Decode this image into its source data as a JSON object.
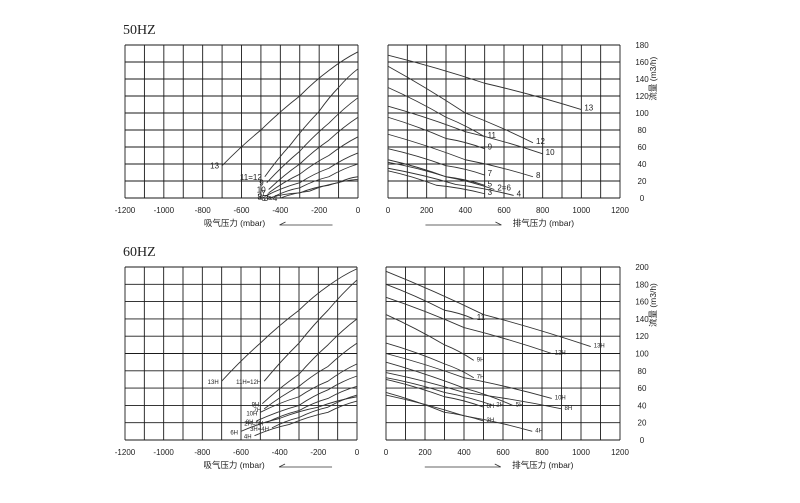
{
  "chart_data": [
    {
      "id": "suction-50",
      "frequency_label": "50HZ",
      "type": "line",
      "xlabel": "吸气压力 (mbar)",
      "ylabel": "",
      "xlim": [
        -1200,
        0
      ],
      "ylim": [
        0,
        180
      ],
      "xticks": [
        -1200,
        -1000,
        -800,
        -600,
        -400,
        -200,
        0
      ],
      "show_ytick_labels": false,
      "grid": true,
      "series": [
        {
          "name": "13",
          "x": [
            -700,
            -500,
            -300,
            -150,
            0
          ],
          "y": [
            38,
            80,
            120,
            150,
            172
          ]
        },
        {
          "name": "11=12",
          "x": [
            -480,
            -350,
            -200,
            -100,
            0
          ],
          "y": [
            25,
            62,
            102,
            130,
            152
          ]
        },
        {
          "name": "9",
          "x": [
            -470,
            -300,
            -150,
            0
          ],
          "y": [
            18,
            55,
            88,
            118
          ]
        },
        {
          "name": "10",
          "x": [
            -460,
            -300,
            -150,
            0
          ],
          "y": [
            10,
            40,
            68,
            95
          ]
        },
        {
          "name": "7",
          "x": [
            -460,
            -300,
            -150,
            0
          ],
          "y": [
            6,
            28,
            50,
            72
          ]
        },
        {
          "name": "8",
          "x": [
            -480,
            -300,
            -150,
            0
          ],
          "y": [
            2,
            18,
            35,
            53
          ]
        },
        {
          "name": "2=5",
          "x": [
            -430,
            -300,
            -150,
            0
          ],
          "y": [
            2,
            12,
            25,
            40
          ]
        },
        {
          "name": "3=4",
          "x": [
            -400,
            -250,
            -100,
            0
          ],
          "y": [
            0,
            8,
            18,
            25
          ]
        },
        {
          "name": "6",
          "x": [
            -460,
            -300,
            -150,
            0
          ],
          "y": [
            0,
            6,
            15,
            22
          ]
        }
      ]
    },
    {
      "id": "discharge-50",
      "type": "line",
      "xlabel": "排气压力 (mbar)",
      "ylabel": "流量 (m3/h)",
      "xlim": [
        0,
        1200
      ],
      "ylim": [
        0,
        180
      ],
      "xticks": [
        0,
        200,
        400,
        600,
        800,
        1000,
        1200
      ],
      "yticks": [
        0,
        20,
        40,
        60,
        80,
        100,
        120,
        140,
        160,
        180
      ],
      "grid": true,
      "series": [
        {
          "name": "13",
          "x": [
            0,
            500,
            1000
          ],
          "y": [
            168,
            135,
            104
          ]
        },
        {
          "name": "12",
          "x": [
            0,
            400,
            750
          ],
          "y": [
            155,
            100,
            65
          ]
        },
        {
          "name": "11",
          "x": [
            0,
            300,
            500
          ],
          "y": [
            130,
            95,
            72
          ]
        },
        {
          "name": "10",
          "x": [
            0,
            400,
            800
          ],
          "y": [
            108,
            78,
            52
          ]
        },
        {
          "name": "9",
          "x": [
            0,
            300,
            500
          ],
          "y": [
            95,
            70,
            58
          ]
        },
        {
          "name": "8",
          "x": [
            0,
            400,
            750
          ],
          "y": [
            75,
            45,
            25
          ]
        },
        {
          "name": "7",
          "x": [
            0,
            300,
            500
          ],
          "y": [
            58,
            38,
            27
          ]
        },
        {
          "name": "5",
          "x": [
            0,
            300,
            500
          ],
          "y": [
            42,
            25,
            15
          ]
        },
        {
          "name": "2=6",
          "x": [
            0,
            300,
            550
          ],
          "y": [
            45,
            25,
            10
          ]
        },
        {
          "name": "3",
          "x": [
            0,
            250,
            500
          ],
          "y": [
            32,
            15,
            5
          ]
        },
        {
          "name": "4",
          "x": [
            0,
            350,
            650
          ],
          "y": [
            35,
            16,
            3
          ]
        }
      ]
    },
    {
      "id": "suction-60",
      "frequency_label": "60HZ",
      "type": "line",
      "xlabel": "吸气压力 (mbar)",
      "ylabel": "",
      "xlim": [
        -1200,
        0
      ],
      "ylim": [
        0,
        200
      ],
      "xticks": [
        -1200,
        -1000,
        -800,
        -600,
        -400,
        -200,
        0
      ],
      "show_ytick_labels": false,
      "grid": true,
      "series": [
        {
          "name": "13H",
          "x": [
            -700,
            -500,
            -300,
            -150,
            0
          ],
          "y": [
            68,
            112,
            150,
            178,
            198
          ]
        },
        {
          "name": "11H=12H",
          "x": [
            -480,
            -300,
            -150,
            0
          ],
          "y": [
            68,
            112,
            150,
            185
          ]
        },
        {
          "name": "9H",
          "x": [
            -490,
            -300,
            -150,
            0
          ],
          "y": [
            42,
            76,
            110,
            140
          ]
        },
        {
          "name": "7H",
          "x": [
            -480,
            -300,
            -150,
            0
          ],
          "y": [
            36,
            62,
            85,
            112
          ]
        },
        {
          "name": "10H",
          "x": [
            -500,
            -300,
            -150,
            0
          ],
          "y": [
            32,
            50,
            68,
            88
          ]
        },
        {
          "name": "8H",
          "x": [
            -520,
            -300,
            -150,
            0
          ],
          "y": [
            22,
            40,
            58,
            74
          ]
        },
        {
          "name": "2H=5H",
          "x": [
            -470,
            -300,
            -150,
            0
          ],
          "y": [
            20,
            34,
            48,
            62
          ]
        },
        {
          "name": "6H",
          "x": [
            -600,
            -400,
            -200,
            0
          ],
          "y": [
            10,
            25,
            38,
            50
          ]
        },
        {
          "name": "3H=4H",
          "x": [
            -440,
            -300,
            -150,
            0
          ],
          "y": [
            14,
            26,
            38,
            52
          ]
        },
        {
          "name": "4H",
          "x": [
            -530,
            -350,
            -150,
            0
          ],
          "y": [
            5,
            18,
            32,
            45
          ]
        }
      ]
    },
    {
      "id": "discharge-60",
      "type": "line",
      "xlabel": "排气压力 (mbar)",
      "ylabel": "流量 (m3/h)",
      "xlim": [
        0,
        1200
      ],
      "ylim": [
        0,
        200
      ],
      "xticks": [
        0,
        200,
        400,
        600,
        800,
        1000,
        1200
      ],
      "yticks": [
        0,
        20,
        40,
        60,
        80,
        100,
        120,
        140,
        160,
        180,
        200
      ],
      "grid": true,
      "series": [
        {
          "name": "13H",
          "x": [
            0,
            500,
            1050
          ],
          "y": [
            195,
            145,
            108
          ]
        },
        {
          "name": "11",
          "x": [
            0,
            300,
            450
          ],
          "y": [
            180,
            150,
            140
          ]
        },
        {
          "name": "12H",
          "x": [
            0,
            400,
            850
          ],
          "y": [
            165,
            130,
            100
          ]
        },
        {
          "name": "9H",
          "x": [
            0,
            300,
            450
          ],
          "y": [
            145,
            110,
            92
          ]
        },
        {
          "name": "10H",
          "x": [
            0,
            400,
            850
          ],
          "y": [
            100,
            72,
            48
          ]
        },
        {
          "name": "7H",
          "x": [
            0,
            300,
            450
          ],
          "y": [
            112,
            88,
            72
          ]
        },
        {
          "name": "6H",
          "x": [
            0,
            300,
            500
          ],
          "y": [
            70,
            50,
            38
          ]
        },
        {
          "name": "2H",
          "x": [
            0,
            300,
            550
          ],
          "y": [
            72,
            55,
            40
          ]
        },
        {
          "name": "5H",
          "x": [
            0,
            400,
            650
          ],
          "y": [
            90,
            60,
            40
          ]
        },
        {
          "name": "8H",
          "x": [
            0,
            400,
            900
          ],
          "y": [
            78,
            55,
            36
          ]
        },
        {
          "name": "3H",
          "x": [
            0,
            300,
            500
          ],
          "y": [
            55,
            32,
            22
          ]
        },
        {
          "name": "4H",
          "x": [
            0,
            400,
            750
          ],
          "y": [
            52,
            28,
            10
          ]
        }
      ]
    }
  ]
}
